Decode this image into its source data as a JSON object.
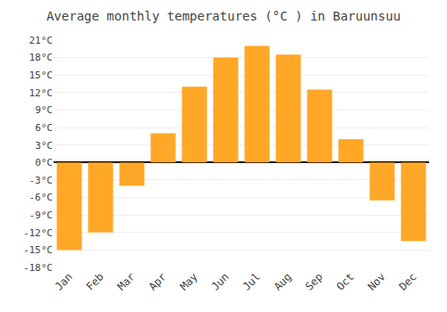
{
  "chart_data": {
    "type": "bar",
    "title": "Average monthly temperatures (°C ) in Baruunsuu",
    "categories": [
      "Jan",
      "Feb",
      "Mar",
      "Apr",
      "May",
      "Jun",
      "Jul",
      "Aug",
      "Sep",
      "Oct",
      "Nov",
      "Dec"
    ],
    "values": [
      -15,
      -12,
      -4,
      5,
      13,
      18,
      20,
      18.5,
      12.5,
      4,
      -6.5,
      -13.5
    ],
    "color": "#FFA726",
    "ylim": [
      -18,
      21
    ],
    "yticks": [
      {
        "value": -18,
        "label": "-18°C"
      },
      {
        "value": -15,
        "label": "-15°C"
      },
      {
        "value": -12,
        "label": "-12°C"
      },
      {
        "value": -9,
        "label": "-9°C"
      },
      {
        "value": -6,
        "label": "-6°C"
      },
      {
        "value": -3,
        "label": "-3°C"
      },
      {
        "value": 0,
        "label": "0°C"
      },
      {
        "value": 3,
        "label": "3°C"
      },
      {
        "value": 6,
        "label": "6°C"
      },
      {
        "value": 9,
        "label": "9°C"
      },
      {
        "value": 12,
        "label": "12°C"
      },
      {
        "value": 15,
        "label": "15°C"
      },
      {
        "value": 18,
        "label": "18°C"
      },
      {
        "value": 21,
        "label": "21°C"
      }
    ],
    "grid": true
  }
}
